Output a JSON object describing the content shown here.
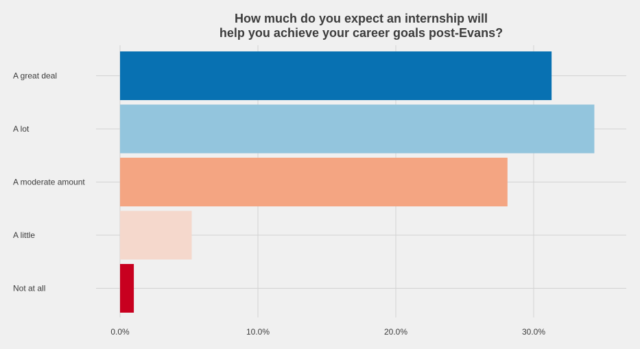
{
  "chart_data": {
    "type": "bar",
    "orientation": "horizontal",
    "title": [
      "How much do you expect an internship will",
      "help you achieve your career goals post-Evans?"
    ],
    "categories": [
      "A great deal",
      "A lot",
      "A moderate amount",
      "A little",
      "Not at all"
    ],
    "values": [
      31.3,
      34.4,
      28.1,
      5.2,
      1.0
    ],
    "colors": [
      "#0871b2",
      "#93c5dd",
      "#f4a582",
      "#f5d8cc",
      "#c8001f"
    ],
    "xlim": [
      0,
      36.8
    ],
    "xticks": [
      0,
      10,
      20,
      30
    ],
    "xtick_labels": [
      "0.0%",
      "10.0%",
      "20.0%",
      "30.0%"
    ],
    "xlabel": "",
    "ylabel": "",
    "grid": true,
    "legend": "none",
    "background": "#f0f0f0",
    "grid_color": "#d2d2d2"
  }
}
